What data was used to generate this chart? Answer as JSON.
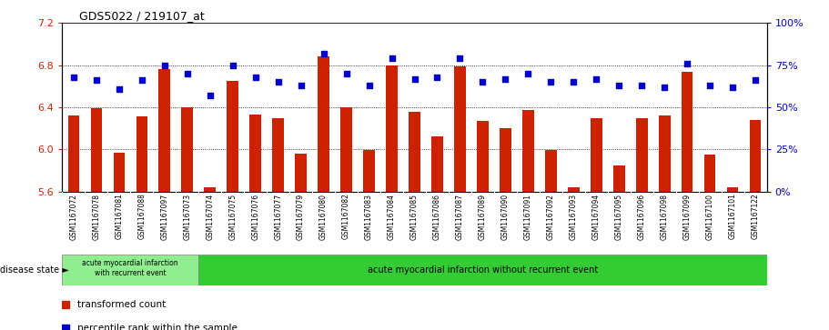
{
  "title": "GDS5022 / 219107_at",
  "samples": [
    "GSM1167072",
    "GSM1167078",
    "GSM1167081",
    "GSM1167088",
    "GSM1167097",
    "GSM1167073",
    "GSM1167074",
    "GSM1167075",
    "GSM1167076",
    "GSM1167077",
    "GSM1167079",
    "GSM1167080",
    "GSM1167082",
    "GSM1167083",
    "GSM1167084",
    "GSM1167085",
    "GSM1167086",
    "GSM1167087",
    "GSM1167089",
    "GSM1167090",
    "GSM1167091",
    "GSM1167092",
    "GSM1167093",
    "GSM1167094",
    "GSM1167095",
    "GSM1167096",
    "GSM1167098",
    "GSM1167099",
    "GSM1167100",
    "GSM1167101",
    "GSM1167122"
  ],
  "bar_values": [
    6.32,
    6.39,
    5.97,
    6.31,
    6.76,
    6.4,
    5.64,
    6.65,
    6.33,
    6.3,
    5.96,
    6.88,
    6.4,
    5.99,
    6.8,
    6.36,
    6.12,
    6.79,
    6.27,
    6.2,
    6.37,
    5.99,
    5.64,
    6.3,
    5.85,
    6.3,
    6.32,
    6.74,
    5.95,
    5.64,
    6.28
  ],
  "dot_values": [
    68,
    66,
    61,
    66,
    75,
    70,
    57,
    75,
    68,
    65,
    63,
    82,
    70,
    63,
    79,
    67,
    68,
    79,
    65,
    67,
    70,
    65,
    65,
    67,
    63,
    63,
    62,
    76,
    63,
    62,
    66
  ],
  "ylim_left": [
    5.6,
    7.2
  ],
  "ylim_right": [
    0,
    100
  ],
  "yticks_left": [
    5.6,
    6.0,
    6.4,
    6.8,
    7.2
  ],
  "yticks_right": [
    0,
    25,
    50,
    75,
    100
  ],
  "bar_color": "#cc2200",
  "dot_color": "#0000cc",
  "disease_group1_count": 6,
  "disease_group1_label": "acute myocardial infarction\nwith recurrent event",
  "disease_group2_label": "acute myocardial infarction without recurrent event",
  "disease_state_label": "disease state",
  "legend_bar_label": "transformed count",
  "legend_dot_label": "percentile rank within the sample",
  "group1_color": "#90ee90",
  "group2_color": "#33cc33",
  "axis_bg_color": "#d3d3d3",
  "bg_color": "#ffffff"
}
